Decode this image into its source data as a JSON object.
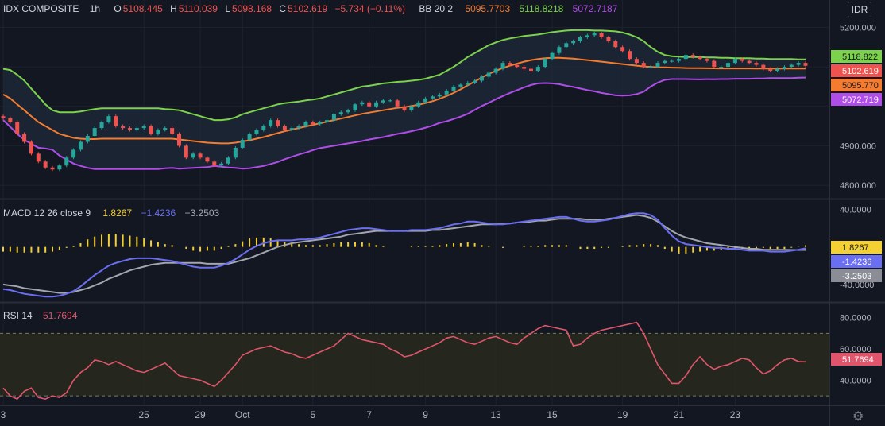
{
  "symbol": "IDX COMPOSITE",
  "interval": "1h",
  "currency_button": "IDR",
  "ohlc": {
    "o_label": "O",
    "o": "5108.445",
    "h_label": "H",
    "h": "5110.039",
    "l_label": "L",
    "l": "5098.168",
    "c_label": "C",
    "c": "5102.619",
    "change": "−5.734 (−0.11%)"
  },
  "bb": {
    "label": "BB 20 2",
    "basis": "5095.7703",
    "upper": "5118.8218",
    "lower": "5072.7187"
  },
  "macd": {
    "label": "MACD 12 26 close 9",
    "hist": "1.8267",
    "macd": "−1.4236",
    "signal": "−3.2503"
  },
  "rsi": {
    "label": "RSI 14",
    "value": "51.7694"
  },
  "colors": {
    "background": "#131722",
    "up": "#26a69a",
    "down": "#ef5350",
    "bb_basis": "#f57c2f",
    "bb_upper": "#7cd24b",
    "bb_lower": "#b04de8",
    "macd_line": "#6a6ef0",
    "signal_line": "#a3a6af",
    "histogram": "#f5d033",
    "rsi_line": "#e0556c"
  },
  "chart_data": [
    {
      "type": "candlestick",
      "name": "price",
      "ylim": [
        4770,
        5225
      ],
      "yticks": [
        "5200.000",
        "4900.000",
        "4800.000"
      ],
      "last_values": {
        "upper": "5118.822",
        "close": "5102.619",
        "basis": "5095.770",
        "lower": "5072.719"
      },
      "close": [
        4970,
        4960,
        4930,
        4910,
        4880,
        4860,
        4845,
        4840,
        4850,
        4870,
        4890,
        4910,
        4925,
        4945,
        4960,
        4975,
        4950,
        4945,
        4940,
        4945,
        4950,
        4930,
        4940,
        4945,
        4930,
        4900,
        4870,
        4880,
        4870,
        4860,
        4850,
        4855,
        4870,
        4895,
        4915,
        4930,
        4940,
        4950,
        4965,
        4950,
        4940,
        4945,
        4950,
        4960,
        4955,
        4960,
        4965,
        4980,
        4985,
        4990,
        5005,
        5010,
        5000,
        5010,
        5015,
        5015,
        5000,
        4990,
        5000,
        5010,
        5020,
        5025,
        5030,
        5040,
        5050,
        5055,
        5060,
        5065,
        5075,
        5085,
        5095,
        5110,
        5105,
        5100,
        5095,
        5090,
        5100,
        5120,
        5135,
        5150,
        5160,
        5165,
        5175,
        5180,
        5185,
        5175,
        5165,
        5150,
        5140,
        5120,
        5110,
        5100,
        5100,
        5110,
        5115,
        5115,
        5120,
        5130,
        5125,
        5120,
        5115,
        5100,
        5100,
        5110,
        5120,
        5115,
        5110,
        5105,
        5095,
        5090,
        5095,
        5100,
        5105,
        5110,
        5102.619
      ],
      "upper": [
        5095,
        5092,
        5080,
        5065,
        5045,
        5025,
        5005,
        4990,
        4985,
        4985,
        4985,
        4987,
        4990,
        4993,
        4995,
        4995,
        4995,
        4995,
        4995,
        4995,
        4995,
        4995,
        4995,
        4993,
        4992,
        4990,
        4985,
        4980,
        4975,
        4970,
        4965,
        4965,
        4967,
        4972,
        4980,
        4985,
        4990,
        4995,
        5000,
        5005,
        5008,
        5010,
        5012,
        5015,
        5017,
        5020,
        5025,
        5030,
        5035,
        5040,
        5045,
        5050,
        5052,
        5055,
        5058,
        5060,
        5062,
        5063,
        5065,
        5067,
        5070,
        5075,
        5080,
        5090,
        5100,
        5112,
        5125,
        5135,
        5145,
        5155,
        5162,
        5168,
        5172,
        5175,
        5178,
        5180,
        5182,
        5185,
        5188,
        5190,
        5192,
        5193,
        5193,
        5193,
        5192,
        5192,
        5191,
        5190,
        5187,
        5182,
        5175,
        5165,
        5150,
        5138,
        5130,
        5127,
        5126,
        5125,
        5125,
        5125,
        5124,
        5124,
        5123,
        5123,
        5122,
        5122,
        5122,
        5121,
        5121,
        5120,
        5120,
        5120,
        5120,
        5119,
        5118.822
      ],
      "basis": [
        5030,
        5020,
        5005,
        4990,
        4975,
        4960,
        4950,
        4940,
        4930,
        4925,
        4920,
        4918,
        4917,
        4917,
        4918,
        4918,
        4918,
        4918,
        4918,
        4918,
        4918,
        4918,
        4918,
        4918,
        4918,
        4916,
        4914,
        4912,
        4910,
        4908,
        4907,
        4906,
        4906,
        4908,
        4911,
        4914,
        4918,
        4922,
        4927,
        4932,
        4937,
        4941,
        4945,
        4949,
        4953,
        4957,
        4961,
        4965,
        4969,
        4973,
        4977,
        4981,
        4984,
        4987,
        4990,
        4993,
        4996,
        4998,
        5001,
        5004,
        5008,
        5013,
        5019,
        5026,
        5034,
        5043,
        5053,
        5063,
        5073,
        5082,
        5090,
        5097,
        5103,
        5108,
        5113,
        5117,
        5120,
        5122,
        5123,
        5123,
        5122,
        5121,
        5119,
        5117,
        5115,
        5113,
        5111,
        5109,
        5107,
        5105,
        5103,
        5101,
        5100,
        5099,
        5098.5,
        5098,
        5097.5,
        5097,
        5096.8,
        5096.6,
        5096.4,
        5096.2,
        5096,
        5096,
        5095.9,
        5095.9,
        5095.9,
        5095.8,
        5095.8,
        5095.8,
        5095.8,
        5095.8,
        5095.8,
        5095.8,
        5095.77
      ],
      "lower": [
        4965,
        4948,
        4930,
        4915,
        4905,
        4895,
        4893,
        4890,
        4875,
        4865,
        4855,
        4849,
        4844,
        4841,
        4841,
        4841,
        4841,
        4841,
        4841,
        4841,
        4841,
        4841,
        4841,
        4843,
        4844,
        4842,
        4843,
        4844,
        4845,
        4846,
        4849,
        4847,
        4845,
        4844,
        4842,
        4843,
        4846,
        4849,
        4854,
        4859,
        4866,
        4872,
        4878,
        4883,
        4889,
        4894,
        4897,
        4900,
        4903,
        4906,
        4909,
        4912,
        4916,
        4919,
        4922,
        4926,
        4930,
        4933,
        4937,
        4941,
        4946,
        4951,
        4958,
        4962,
        4968,
        4974,
        4981,
        4991,
        5001,
        5009,
        5018,
        5026,
        5034,
        5041,
        5048,
        5054,
        5058,
        5059,
        5058,
        5056,
        5052,
        5049,
        5045,
        5041,
        5038,
        5034,
        5031,
        5028,
        5027,
        5028,
        5031,
        5037,
        5050,
        5060,
        5067,
        5069,
        5069,
        5069,
        5068.6,
        5068.2,
        5068.8,
        5068.4,
        5069,
        5069,
        5069.8,
        5069.8,
        5069.8,
        5070.5,
        5070.5,
        5071.6,
        5071.6,
        5071.6,
        5071.6,
        5072.6,
        5072.719
      ]
    },
    {
      "type": "line",
      "name": "macd",
      "ylim": [
        -57,
        48
      ],
      "yticks": [
        "40.0000"
      ],
      "macd": [
        -45,
        -46,
        -48,
        -50,
        -51,
        -52,
        -53,
        -53,
        -52,
        -50,
        -47,
        -42,
        -36,
        -30,
        -25,
        -20,
        -17,
        -15,
        -13,
        -12,
        -12,
        -12,
        -13,
        -14,
        -15,
        -17,
        -19,
        -21,
        -22,
        -22,
        -22,
        -20,
        -17,
        -13,
        -8,
        -3,
        1,
        4,
        6,
        7,
        7,
        7,
        8,
        8,
        9,
        10,
        12,
        14,
        16,
        18,
        19,
        20,
        20,
        19,
        18,
        17,
        17,
        17,
        18,
        18,
        18,
        19,
        20,
        22,
        24,
        25,
        27,
        27,
        26,
        25,
        24,
        24,
        25,
        26,
        27,
        28,
        29,
        30,
        31,
        32,
        32,
        30,
        28,
        27,
        27,
        28,
        29,
        31,
        33,
        35,
        36,
        36,
        34,
        29,
        20,
        12,
        6,
        3,
        2,
        1,
        0,
        -1,
        -1,
        -2,
        -2,
        -3,
        -4,
        -4,
        -4,
        -5,
        -5,
        -5,
        -4,
        -3,
        -1.4236
      ],
      "signal": [
        -40,
        -41,
        -42,
        -44,
        -45,
        -46,
        -47,
        -48,
        -49,
        -49,
        -48,
        -46,
        -44,
        -41,
        -38,
        -34,
        -31,
        -28,
        -25,
        -23,
        -21,
        -19,
        -18,
        -17,
        -17,
        -17,
        -17,
        -17,
        -17,
        -18,
        -18,
        -18,
        -18,
        -16,
        -14,
        -12,
        -9,
        -6,
        -3,
        0,
        2,
        4,
        5,
        6,
        7,
        8,
        9,
        10,
        11,
        13,
        14,
        15,
        16,
        17,
        17,
        17,
        17,
        17,
        17,
        17,
        17,
        18,
        18,
        19,
        20,
        21,
        22,
        23,
        24,
        24,
        24,
        25,
        25,
        26,
        26,
        27,
        28,
        28,
        29,
        30,
        30,
        30,
        30,
        29,
        29,
        29,
        30,
        31,
        32,
        33,
        34,
        33,
        31,
        27,
        22,
        17,
        13,
        10,
        8,
        6,
        4,
        3,
        2,
        1,
        0,
        -1,
        -2,
        -2,
        -3,
        -3,
        -3,
        -3,
        -3.2,
        -3.2,
        -3.2503
      ],
      "last_values": {
        "hist": "1.8267",
        "macd": "-1.4236",
        "signal": "-3.2503"
      }
    },
    {
      "type": "line",
      "name": "rsi",
      "ylim": [
        25,
        88
      ],
      "yticks": [
        "80.0000",
        "60.0000",
        "40.0000"
      ],
      "bands": [
        70,
        30
      ],
      "values": [
        35,
        30,
        28,
        33,
        35,
        29,
        28,
        30,
        29,
        32,
        40,
        45,
        48,
        53,
        52,
        50,
        52,
        50,
        48,
        46,
        45,
        47,
        49,
        51,
        47,
        43,
        42,
        41,
        40,
        38,
        36,
        40,
        45,
        50,
        56,
        58,
        60,
        61,
        62,
        60,
        58,
        57,
        55,
        54,
        56,
        58,
        60,
        62,
        66,
        70,
        68,
        66,
        65,
        64,
        63,
        60,
        58,
        55,
        56,
        58,
        60,
        62,
        64,
        67,
        68,
        66,
        64,
        63,
        65,
        67,
        68,
        66,
        64,
        63,
        67,
        70,
        73,
        75,
        74,
        73,
        72,
        62,
        63,
        67,
        70,
        72,
        73,
        74,
        75,
        76,
        77,
        70,
        60,
        50,
        44,
        38,
        38,
        43,
        50,
        55,
        50,
        47,
        49,
        50,
        52,
        54,
        53,
        48,
        44,
        46,
        50,
        53,
        54,
        52,
        51.7694
      ],
      "last_value": "51.7694"
    }
  ],
  "x_axis": {
    "ticks": [
      "3",
      "25",
      "29",
      "Oct",
      "5",
      "7",
      "9",
      "13",
      "15",
      "19",
      "21",
      "23"
    ]
  }
}
